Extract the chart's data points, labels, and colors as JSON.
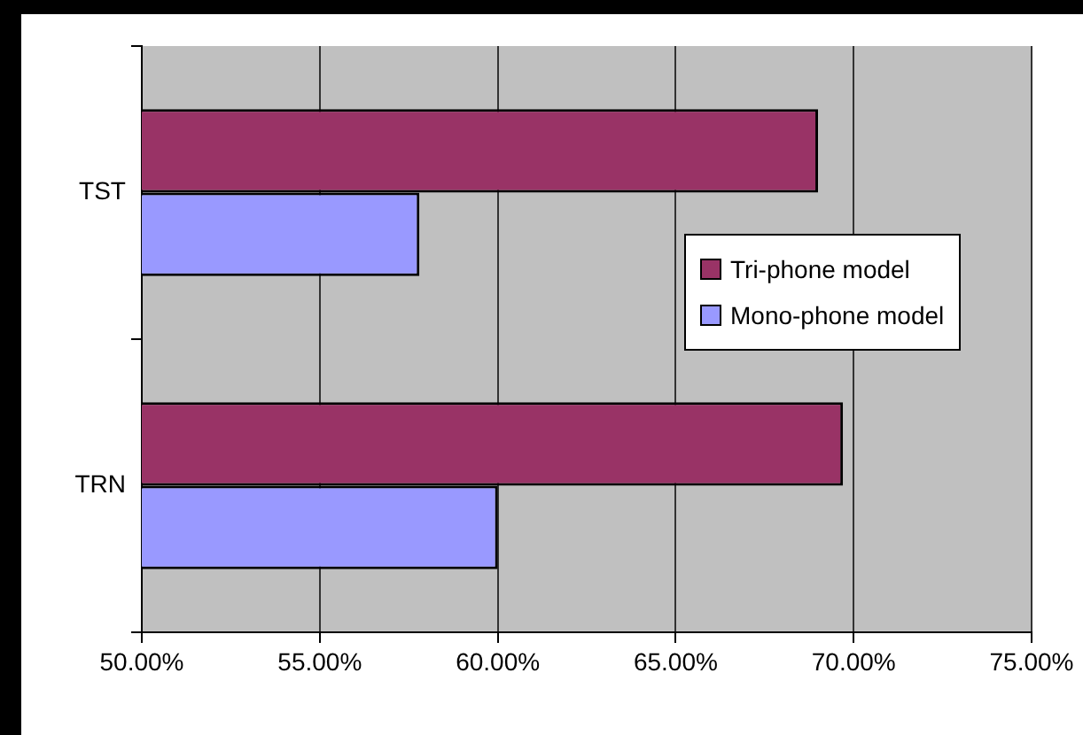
{
  "chart_data": {
    "type": "bar",
    "orientation": "horizontal",
    "categories": [
      "TST",
      "TRN"
    ],
    "series": [
      {
        "name": "Tri-phone model",
        "color": "#993366",
        "values": [
          69.0,
          69.7
        ]
      },
      {
        "name": "Mono-phone model",
        "color": "#9999ff",
        "values": [
          57.8,
          60.0
        ]
      }
    ],
    "xlim": [
      50,
      75
    ],
    "xticks": [
      {
        "value": 50,
        "label": "50.00%"
      },
      {
        "value": 55,
        "label": "55.00%"
      },
      {
        "value": 60,
        "label": "60.00%"
      },
      {
        "value": 65,
        "label": "65.00%"
      },
      {
        "value": 70,
        "label": "70.00%"
      },
      {
        "value": 75,
        "label": "75.00%"
      }
    ],
    "grid": "x",
    "legend": "right"
  }
}
